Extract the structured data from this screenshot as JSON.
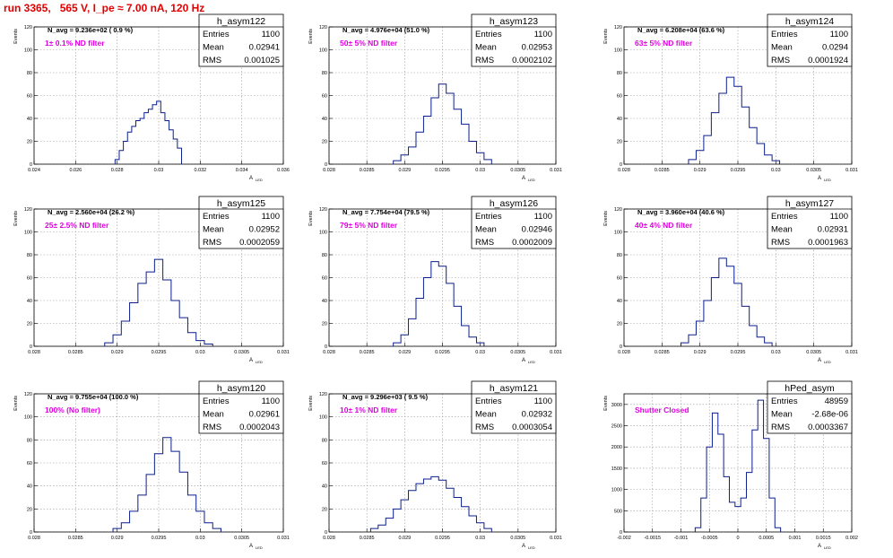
{
  "title": "run 3365,   565 V, I_pe ≈ 7.00 nA, 120 Hz",
  "colors": {
    "title": "#e00000",
    "histogram": "#0b1f8c",
    "annotation": "#e000e0",
    "grid": "#9a9a9a",
    "axis": "#000000"
  },
  "y_axis_label": "Events",
  "x_axis_label": "A",
  "x_axis_label_sub": "LED",
  "stats_labels": [
    "Entries",
    "Mean",
    "RMS"
  ],
  "chart_data": [
    {
      "type": "histogram",
      "name": "h_asym122",
      "navg": "N_avg = 9.236e+02 ( 0.9 %)",
      "note": "1± 0.1% ND filter",
      "stats": {
        "entries": "1100",
        "mean": "0.02941",
        "rms": "0.001025"
      },
      "xlim": [
        0.024,
        0.036
      ],
      "ylim": [
        0,
        120
      ],
      "xticks": [
        "0.024",
        "0.026",
        "0.028",
        "0.03",
        "0.032",
        "0.034",
        "0.036"
      ],
      "yticks": [
        "0",
        "20",
        "40",
        "60",
        "80",
        "100",
        "120"
      ],
      "x": [
        0.028,
        0.0282,
        0.0284,
        0.0286,
        0.0288,
        0.029,
        0.0292,
        0.0294,
        0.0296,
        0.0298,
        0.03,
        0.0302,
        0.0304,
        0.0306,
        0.0308,
        0.031
      ],
      "values": [
        4,
        12,
        20,
        28,
        33,
        38,
        40,
        45,
        48,
        52,
        55,
        45,
        38,
        30,
        22,
        14
      ]
    },
    {
      "type": "histogram",
      "name": "h_asym123",
      "navg": "N_avg = 4.976e+04 (51.0 %)",
      "note": "50± 5% ND filter",
      "stats": {
        "entries": "1100",
        "mean": "0.02953",
        "rms": "0.0002102"
      },
      "xlim": [
        0.028,
        0.031
      ],
      "ylim": [
        0,
        120
      ],
      "xticks": [
        "0.028",
        "0.0285",
        "0.029",
        "0.0295",
        "0.03",
        "0.0305",
        "0.031"
      ],
      "yticks": [
        "0",
        "20",
        "40",
        "60",
        "80",
        "100",
        "120"
      ],
      "x": [
        0.0289,
        0.029,
        0.0291,
        0.0292,
        0.0293,
        0.0294,
        0.0295,
        0.0296,
        0.0297,
        0.0298,
        0.0299,
        0.03,
        0.0301
      ],
      "values": [
        3,
        8,
        15,
        28,
        42,
        58,
        70,
        62,
        48,
        35,
        20,
        10,
        4
      ]
    },
    {
      "type": "histogram",
      "name": "h_asym124",
      "navg": "N_avg = 6.208e+04 (63.6 %)",
      "note": "63± 5% ND filter",
      "stats": {
        "entries": "1100",
        "mean": "0.0294",
        "rms": "0.0001924"
      },
      "xlim": [
        0.028,
        0.031
      ],
      "ylim": [
        0,
        120
      ],
      "xticks": [
        "0.028",
        "0.0285",
        "0.029",
        "0.0295",
        "0.03",
        "0.0305",
        "0.031"
      ],
      "yticks": [
        "0",
        "20",
        "40",
        "60",
        "80",
        "100",
        "120"
      ],
      "x": [
        0.0289,
        0.029,
        0.0291,
        0.0292,
        0.0293,
        0.0294,
        0.0295,
        0.0296,
        0.0297,
        0.0298,
        0.0299,
        0.03
      ],
      "values": [
        4,
        12,
        25,
        45,
        62,
        76,
        68,
        50,
        32,
        18,
        8,
        3
      ]
    },
    {
      "type": "histogram",
      "name": "h_asym125",
      "navg": "N_avg = 2.560e+04 (26.2 %)",
      "note": "25± 2.5% ND filter",
      "stats": {
        "entries": "1100",
        "mean": "0.02952",
        "rms": "0.0002059"
      },
      "xlim": [
        0.028,
        0.031
      ],
      "ylim": [
        0,
        120
      ],
      "xticks": [
        "0.028",
        "0.0285",
        "0.029",
        "0.0295",
        "0.03",
        "0.0305",
        "0.031"
      ],
      "yticks": [
        "0",
        "20",
        "40",
        "60",
        "80",
        "100",
        "120"
      ],
      "x": [
        0.0289,
        0.029,
        0.0291,
        0.0292,
        0.0293,
        0.0294,
        0.0295,
        0.0296,
        0.0297,
        0.0298,
        0.0299,
        0.03,
        0.0301
      ],
      "values": [
        3,
        10,
        22,
        38,
        55,
        65,
        76,
        58,
        40,
        25,
        12,
        5,
        2
      ]
    },
    {
      "type": "histogram",
      "name": "h_asym126",
      "navg": "N_avg = 7.754e+04 (79.5 %)",
      "note": "79± 5% ND filter",
      "stats": {
        "entries": "1100",
        "mean": "0.02946",
        "rms": "0.0002009"
      },
      "xlim": [
        0.028,
        0.031
      ],
      "ylim": [
        0,
        120
      ],
      "xticks": [
        "0.028",
        "0.0285",
        "0.029",
        "0.0295",
        "0.03",
        "0.0305",
        "0.031"
      ],
      "yticks": [
        "0",
        "20",
        "40",
        "60",
        "80",
        "100",
        "120"
      ],
      "x": [
        0.0289,
        0.029,
        0.0291,
        0.0292,
        0.0293,
        0.0294,
        0.0295,
        0.0296,
        0.0297,
        0.0298,
        0.0299,
        0.03
      ],
      "values": [
        3,
        10,
        24,
        42,
        60,
        74,
        70,
        55,
        35,
        18,
        8,
        3
      ]
    },
    {
      "type": "histogram",
      "name": "h_asym127",
      "navg": "N_avg = 3.960e+04 (40.6 %)",
      "note": "40± 4% ND filter",
      "stats": {
        "entries": "1100",
        "mean": "0.02931",
        "rms": "0.0001963"
      },
      "xlim": [
        0.028,
        0.031
      ],
      "ylim": [
        0,
        120
      ],
      "xticks": [
        "0.028",
        "0.0285",
        "0.029",
        "0.0295",
        "0.03",
        "0.0305",
        "0.031"
      ],
      "yticks": [
        "0",
        "20",
        "40",
        "60",
        "80",
        "100",
        "120"
      ],
      "x": [
        0.0288,
        0.0289,
        0.029,
        0.0291,
        0.0292,
        0.0293,
        0.0294,
        0.0295,
        0.0296,
        0.0297,
        0.0298,
        0.0299
      ],
      "values": [
        3,
        10,
        22,
        40,
        60,
        77,
        70,
        55,
        35,
        18,
        8,
        3
      ]
    },
    {
      "type": "histogram",
      "name": "h_asym120",
      "navg": "N_avg = 9.755e+04 (100.0 %)",
      "note": "100% (No filter)",
      "stats": {
        "entries": "1100",
        "mean": "0.02961",
        "rms": "0.0002043"
      },
      "xlim": [
        0.028,
        0.031
      ],
      "ylim": [
        0,
        120
      ],
      "xticks": [
        "0.028",
        "0.0285",
        "0.029",
        "0.0295",
        "0.03",
        "0.0305",
        "0.031"
      ],
      "yticks": [
        "0",
        "20",
        "40",
        "60",
        "80",
        "100",
        "120"
      ],
      "x": [
        0.029,
        0.0291,
        0.0292,
        0.0293,
        0.0294,
        0.0295,
        0.0296,
        0.0297,
        0.0298,
        0.0299,
        0.03,
        0.0301,
        0.0302
      ],
      "values": [
        3,
        8,
        18,
        32,
        50,
        68,
        82,
        70,
        52,
        32,
        18,
        8,
        3
      ]
    },
    {
      "type": "histogram",
      "name": "h_asym121",
      "navg": "N_avg = 9.296e+03 ( 9.5 %)",
      "note": "10± 1% ND filter",
      "stats": {
        "entries": "1100",
        "mean": "0.02932",
        "rms": "0.0003054"
      },
      "xlim": [
        0.028,
        0.031
      ],
      "ylim": [
        0,
        120
      ],
      "xticks": [
        "0.028",
        "0.0285",
        "0.029",
        "0.0295",
        "0.03",
        "0.0305",
        "0.031"
      ],
      "yticks": [
        "0",
        "20",
        "40",
        "60",
        "80",
        "100",
        "120"
      ],
      "x": [
        0.0286,
        0.0287,
        0.0288,
        0.0289,
        0.029,
        0.0291,
        0.0292,
        0.0293,
        0.0294,
        0.0295,
        0.0296,
        0.0297,
        0.0298,
        0.0299,
        0.03,
        0.0301
      ],
      "values": [
        3,
        6,
        12,
        20,
        28,
        36,
        42,
        46,
        48,
        45,
        38,
        30,
        22,
        14,
        8,
        3
      ]
    },
    {
      "type": "histogram",
      "name": "hPed_asym",
      "navg": "",
      "note": "Shutter Closed",
      "stats": {
        "entries": "48959",
        "mean": "-2.68e-06",
        "rms": "0.0003367"
      },
      "xlim": [
        -0.002,
        0.002
      ],
      "ylim": [
        0,
        3250
      ],
      "xticks": [
        "-0.002",
        "-0.0015",
        "-0.001",
        "-0.0005",
        "0",
        "0.0005",
        "0.001",
        "0.0015",
        "0.002"
      ],
      "yticks": [
        "0",
        "500",
        "1000",
        "1500",
        "2000",
        "2500",
        "3000"
      ],
      "x": [
        -0.0007,
        -0.0006,
        -0.0005,
        -0.0004,
        -0.0003,
        -0.0002,
        -0.0001,
        0.0,
        0.0001,
        0.0002,
        0.0003,
        0.0004,
        0.0005,
        0.0006,
        0.0007
      ],
      "values": [
        100,
        800,
        2000,
        2800,
        2300,
        1300,
        700,
        600,
        800,
        1400,
        2400,
        3100,
        2200,
        800,
        100
      ]
    }
  ]
}
